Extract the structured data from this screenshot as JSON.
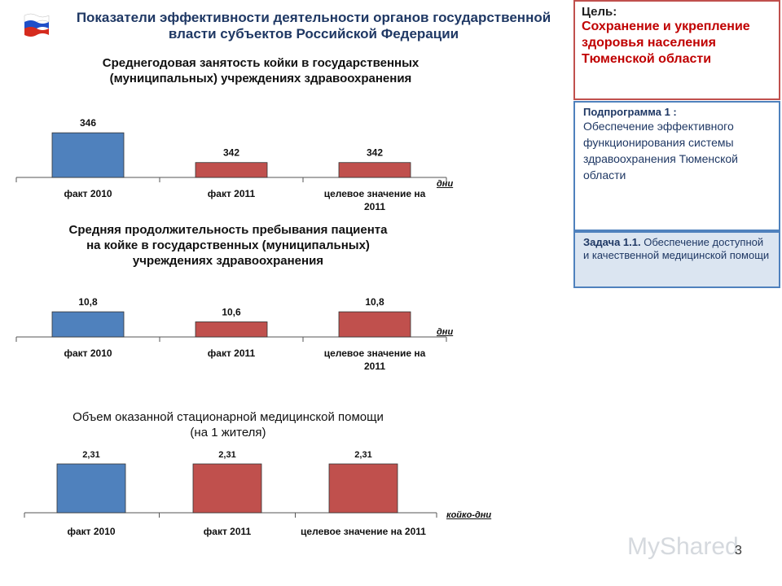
{
  "header": {
    "title": "Показатели эффективности деятельности органов государственной власти субъектов Российской Федерации"
  },
  "panel": {
    "goal_head": "Цель:",
    "goal_text": "Сохранение и укрепление здоровья населения Тюменской области",
    "subprogram_head": "Подпрограмма 1 :",
    "subprogram_text": "Обеспечение эффективного функционирования системы здравоохранения Тюменской области",
    "task_head": "Задача 1.1.",
    "task_text": "Обеспечение доступной и качественной медицинской помощи"
  },
  "footer": {
    "page_number": "3",
    "watermark": "MyShared"
  },
  "colors": {
    "blue_bar": "#4f81bd",
    "red_bar": "#c0504d",
    "title_blue": "#1f3864"
  },
  "chart_data": [
    {
      "type": "bar",
      "title": "Среднегодовая занятость койки в государственных (муниципальных) учреждениях здравоохранения",
      "categories": [
        "факт 2010",
        "факт 2011",
        "целевое значение на 2011"
      ],
      "values": [
        346,
        342,
        342
      ],
      "labels": [
        "346",
        "342",
        "342"
      ],
      "unit": "дни",
      "colors": [
        "#4f81bd",
        "#c0504d",
        "#c0504d"
      ]
    },
    {
      "type": "bar",
      "title": "Средняя продолжительность пребывания пациента на койке в государственных (муниципальных) учреждениях здравоохранения",
      "categories": [
        "факт 2010",
        "факт 2011",
        "целевое значение на 2011"
      ],
      "values": [
        10.8,
        10.6,
        10.8
      ],
      "labels": [
        "10,8",
        "10,6",
        "10,8"
      ],
      "unit": "дни",
      "colors": [
        "#4f81bd",
        "#c0504d",
        "#c0504d"
      ]
    },
    {
      "type": "bar",
      "title": "Объем оказанной стационарной медицинской помощи (на 1 жителя)",
      "categories": [
        "факт 2010",
        "факт 2011",
        "целевое значение на 2011"
      ],
      "values": [
        2.31,
        2.31,
        2.31
      ],
      "labels": [
        "2,31",
        "2,31",
        "2,31"
      ],
      "unit": "койко-дни",
      "colors": [
        "#4f81bd",
        "#c0504d",
        "#c0504d"
      ]
    }
  ]
}
